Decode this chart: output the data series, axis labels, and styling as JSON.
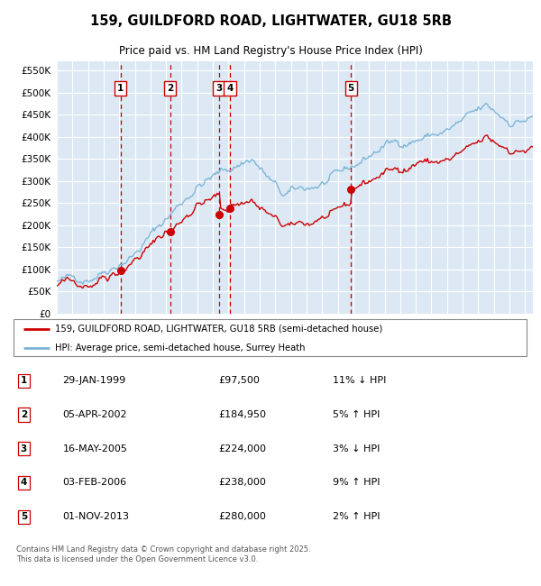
{
  "title_line1": "159, GUILDFORD ROAD, LIGHTWATER, GU18 5RB",
  "title_line2": "Price paid vs. HM Land Registry's House Price Index (HPI)",
  "ytick_values": [
    0,
    50000,
    100000,
    150000,
    200000,
    250000,
    300000,
    350000,
    400000,
    450000,
    500000,
    550000
  ],
  "ylim": [
    0,
    570000
  ],
  "xlim_start": 1995.0,
  "xlim_end": 2025.5,
  "bg_color": "#dce9f5",
  "grid_color": "#ffffff",
  "hpi_line_color": "#7ab3d4",
  "property_line_color": "#cc0000",
  "vline_color": "#cc0000",
  "label1_text": "159, GUILDFORD ROAD, LIGHTWATER, GU18 5RB (semi-detached house)",
  "label2_text": "HPI: Average price, semi-detached house, Surrey Heath",
  "transactions": [
    {
      "num": 1,
      "date_str": "29-JAN-1999",
      "price": 97500,
      "year": 1999.08,
      "pct": "11%",
      "dir": "↓"
    },
    {
      "num": 2,
      "date_str": "05-APR-2002",
      "price": 184950,
      "year": 2002.27,
      "pct": "5%",
      "dir": "↑"
    },
    {
      "num": 3,
      "date_str": "16-MAY-2005",
      "price": 224000,
      "year": 2005.38,
      "pct": "3%",
      "dir": "↓"
    },
    {
      "num": 4,
      "date_str": "03-FEB-2006",
      "price": 238000,
      "year": 2006.09,
      "pct": "9%",
      "dir": "↑"
    },
    {
      "num": 5,
      "date_str": "01-NOV-2013",
      "price": 280000,
      "year": 2013.84,
      "pct": "2%",
      "dir": "↑"
    }
  ],
  "footer_text": "Contains HM Land Registry data © Crown copyright and database right 2025.\nThis data is licensed under the Open Government Licence v3.0."
}
